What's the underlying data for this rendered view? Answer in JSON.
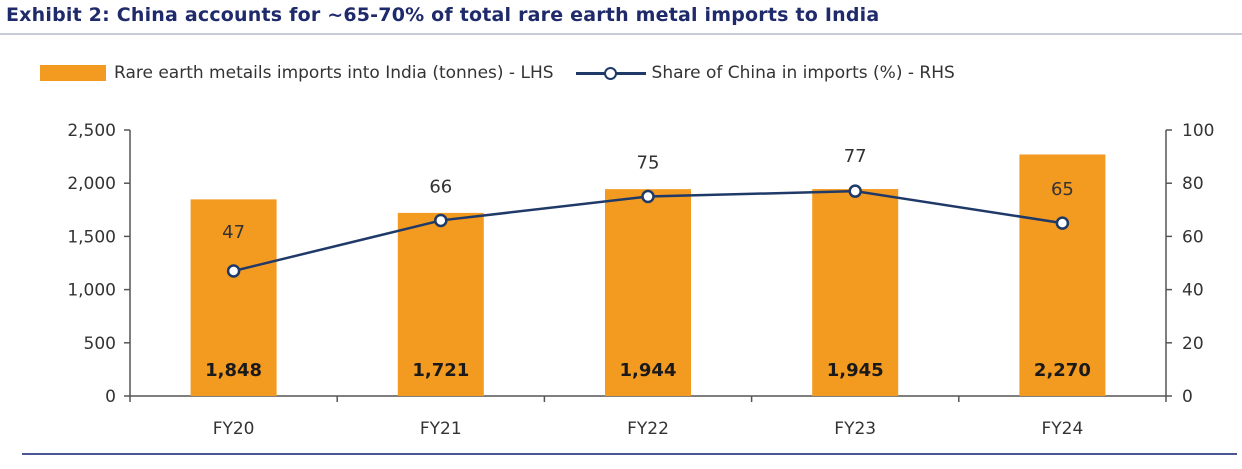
{
  "title": "Exhibit 2: China accounts for ~65-70% of total rare earth metal imports to India",
  "colors": {
    "bar": "#f39a21",
    "line": "#1f3a68",
    "title": "#1f2a6b"
  },
  "chart_data": {
    "type": "bar",
    "categories": [
      "FY20",
      "FY21",
      "FY22",
      "FY23",
      "FY24"
    ],
    "series": [
      {
        "name": "Rare earth metails imports into India (tonnes) - LHS",
        "type": "bar",
        "axis": "left",
        "values": [
          1848,
          1721,
          1944,
          1945,
          2270
        ],
        "labels": [
          "1,848",
          "1,721",
          "1,944",
          "1,945",
          "2,270"
        ]
      },
      {
        "name": "Share of China in imports (%) - RHS",
        "type": "line",
        "axis": "right",
        "values": [
          47,
          66,
          75,
          77,
          65
        ],
        "labels": [
          "47",
          "66",
          "75",
          "77",
          "65"
        ]
      }
    ],
    "y_left": {
      "lim": [
        0,
        2500
      ],
      "ticks": [
        "0",
        "500",
        "1,000",
        "1,500",
        "2,000",
        "2,500"
      ]
    },
    "y_right": {
      "lim": [
        0,
        100
      ],
      "ticks": [
        "0",
        "20",
        "40",
        "60",
        "80",
        "100"
      ]
    },
    "legend_position": "top",
    "grid": false
  }
}
